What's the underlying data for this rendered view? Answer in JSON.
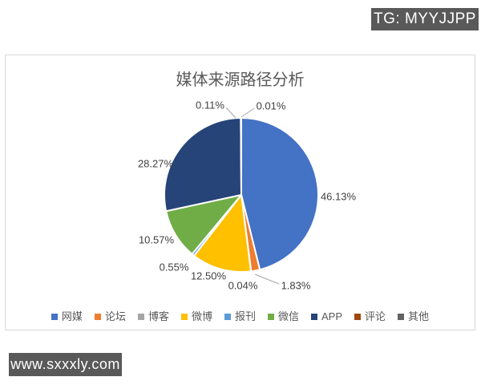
{
  "watermarks": {
    "top_right": "TG: MYYJJPP",
    "bottom_left": "www.sxxxly.com"
  },
  "chart_data": {
    "type": "pie",
    "title": "媒体来源路径分析",
    "categories": [
      "网媒",
      "论坛",
      "博客",
      "微博",
      "报刊",
      "微信",
      "APP",
      "评论",
      "其他"
    ],
    "values": [
      46.13,
      1.83,
      0.04,
      12.5,
      0.55,
      10.57,
      28.27,
      0.11,
      0.01
    ],
    "labels": [
      "46.13%",
      "1.83%",
      "0.04%",
      "12.50%",
      "0.55%",
      "10.57%",
      "28.27%",
      "0.11%",
      "0.01%"
    ],
    "colors": [
      "#4472C4",
      "#ED7D31",
      "#A5A5A5",
      "#FFC000",
      "#5B9BD5",
      "#70AD47",
      "#264478",
      "#9E480E",
      "#636363"
    ],
    "legend_position": "bottom",
    "start_angle_deg": 0,
    "direction": "clockwise",
    "label_color": "#404040",
    "title_color": "#595959",
    "leader_line_color": "#A6A6A6"
  }
}
